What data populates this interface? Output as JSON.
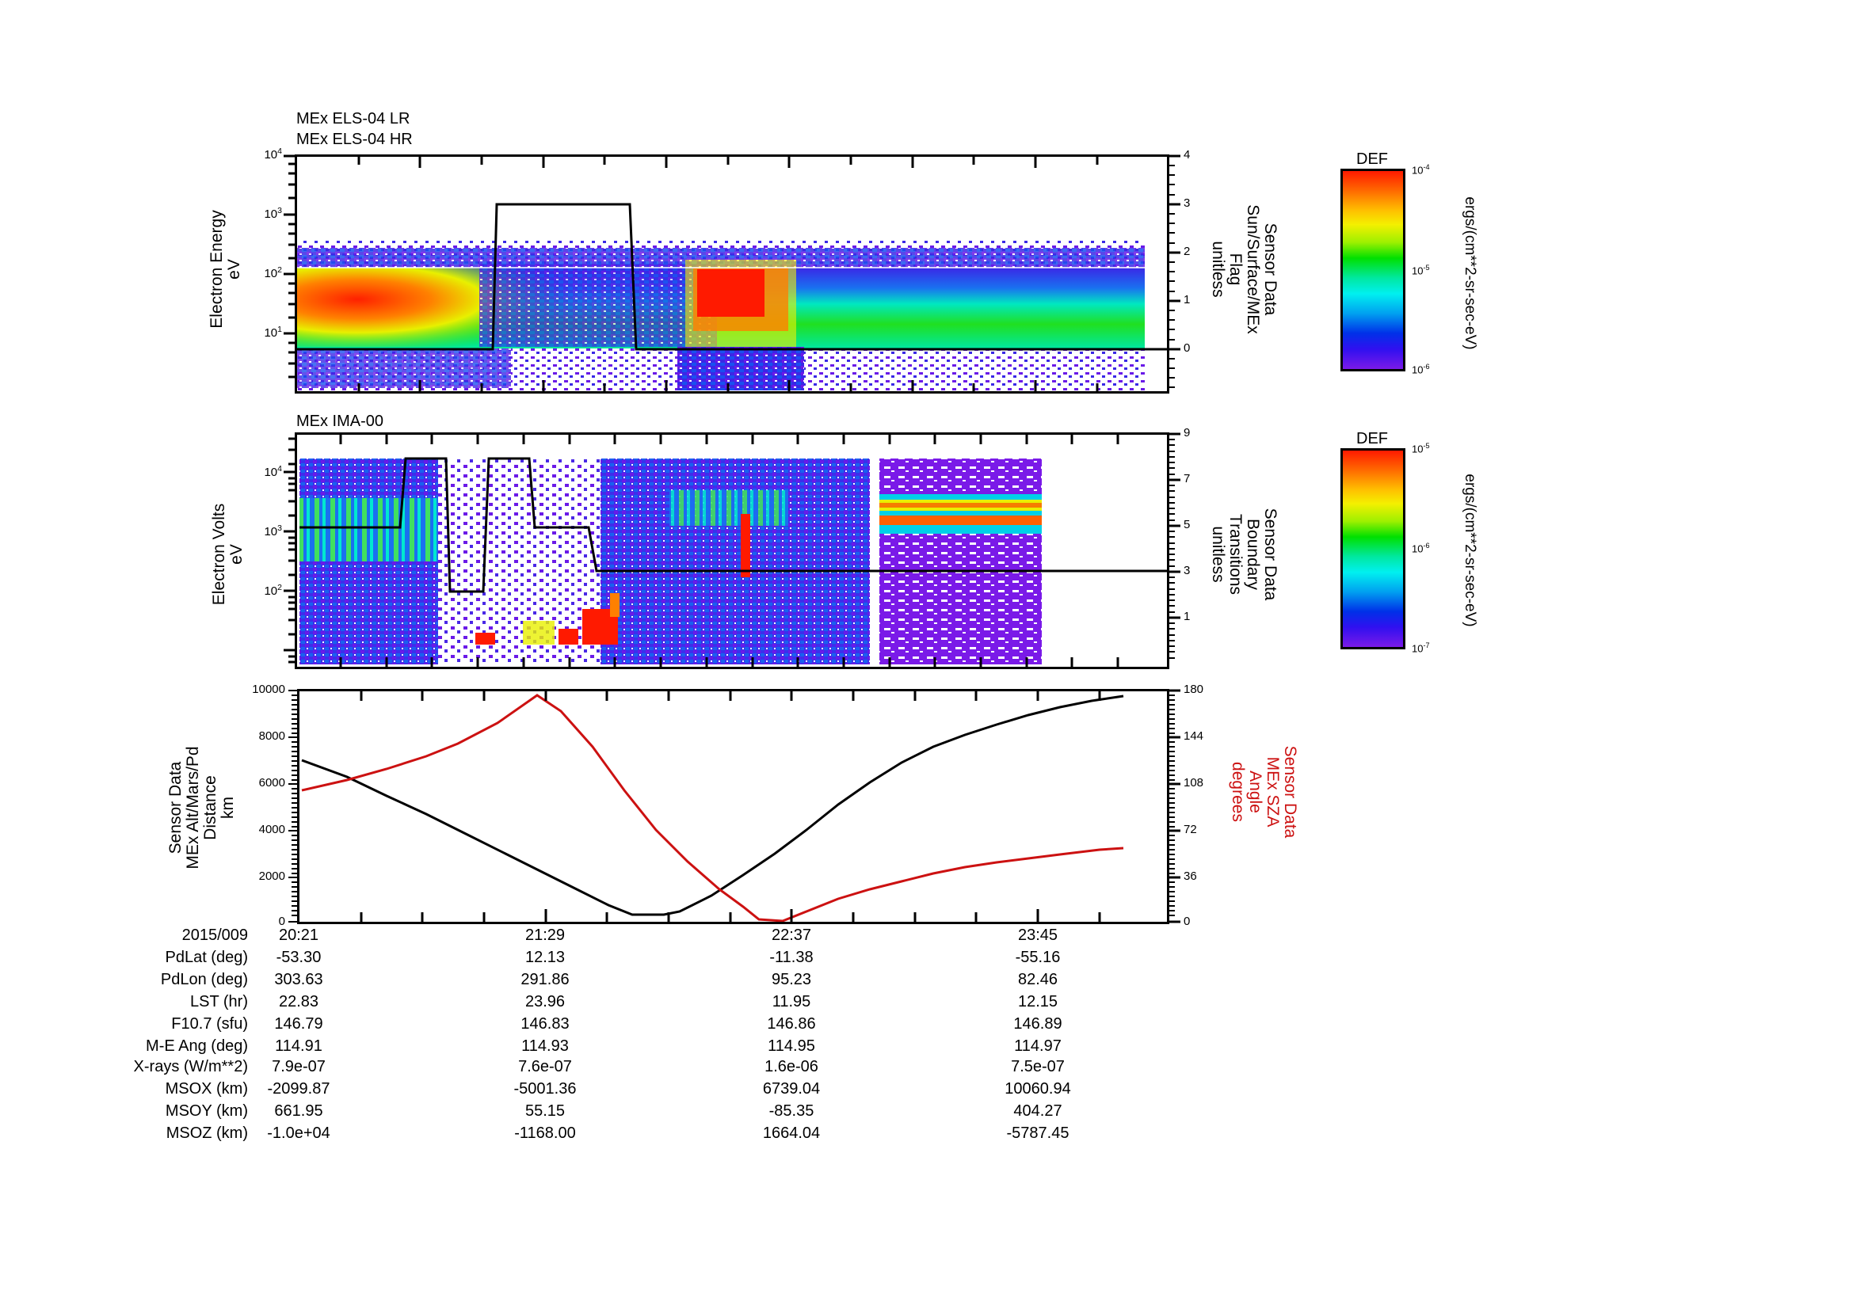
{
  "panels": {
    "els": {
      "title_line1": "MEx ELS-04 LR",
      "title_line2": "MEx ELS-04 HR",
      "ylabel_left": [
        "Electron Energy",
        "eV"
      ],
      "yticks_left": [
        "10^4",
        "10^3",
        "10^2",
        "10^1"
      ],
      "ylabel_right": [
        "Sensor Data",
        "Sun/Surface/MEx",
        "Flag",
        "unitless"
      ],
      "yticks_right": [
        "4",
        "3",
        "2",
        "1",
        "0"
      ],
      "colorbar": {
        "title": "DEF",
        "max": "10^-4",
        "mid": "10^-5",
        "min": "10^-6",
        "unit": "ergs/(cm**2-sr-sec-eV)"
      }
    },
    "ima": {
      "title": "MEx IMA-00",
      "ylabel_left": [
        "Electron Volts",
        "eV"
      ],
      "yticks_left": [
        "10^4",
        "10^3",
        "10^2"
      ],
      "ylabel_right": [
        "Sensor Data",
        "Boundary",
        "Transitions",
        "unitless"
      ],
      "yticks_right": [
        "9",
        "7",
        "5",
        "3",
        "1"
      ],
      "colorbar": {
        "title": "DEF",
        "max": "10^-5",
        "mid": "10^-6",
        "min": "10^-7",
        "unit": "ergs/(cm**2-sr-sec-eV)"
      }
    },
    "orbit": {
      "ylabel_left": [
        "Sensor Data",
        "MEx Alt/Mars/Pd",
        "Distance",
        "km"
      ],
      "yticks_left": [
        "10000",
        "8000",
        "6000",
        "4000",
        "2000",
        "0"
      ],
      "ylabel_right": [
        "Sensor Data",
        "MEx SZA",
        "Angle",
        "degrees"
      ],
      "yticks_right": [
        "180",
        "144",
        "108",
        "72",
        "36",
        "0"
      ],
      "right_color": "#cc1111"
    }
  },
  "annotations": {
    "date": "2015/009",
    "times": [
      "20:21",
      "21:29",
      "22:37",
      "23:45"
    ],
    "rows": [
      {
        "label": "PdLat (deg)",
        "values": [
          "-53.30",
          "12.13",
          "-11.38",
          "-55.16"
        ]
      },
      {
        "label": "PdLon (deg)",
        "values": [
          "303.63",
          "291.86",
          "95.23",
          "82.46"
        ]
      },
      {
        "label": "LST (hr)",
        "values": [
          "22.83",
          "23.96",
          "11.95",
          "12.15"
        ]
      },
      {
        "label": "F10.7 (sfu)",
        "values": [
          "146.79",
          "146.83",
          "146.86",
          "146.89"
        ]
      },
      {
        "label": "M-E Ang (deg)",
        "values": [
          "114.91",
          "114.93",
          "114.95",
          "114.97"
        ]
      },
      {
        "label": "X-rays (W/m**2)",
        "values": [
          "7.9e-07",
          "7.6e-07",
          "1.6e-06",
          "7.5e-07"
        ]
      },
      {
        "label": "MSOX (km)",
        "values": [
          "-2099.87",
          "-5001.36",
          "6739.04",
          "10060.94"
        ]
      },
      {
        "label": "MSOY (km)",
        "values": [
          "661.95",
          "55.15",
          "-85.35",
          "404.27"
        ]
      },
      {
        "label": "MSOZ (km)",
        "values": [
          "-1.0e+04",
          "-1168.00",
          "1664.04",
          "-5787.45"
        ]
      }
    ]
  },
  "chart_data": [
    {
      "type": "heatmap",
      "title": "MEx ELS-04 LR / MEx ELS-04 HR",
      "xlabel": "UT 2015/009",
      "x_ticks": [
        "20:21",
        "21:29",
        "22:37",
        "23:45"
      ],
      "ylabel": "Electron Energy (eV)",
      "yscale": "log",
      "ylim": [
        1,
        10000
      ],
      "colorbar": {
        "label": "DEF ergs/(cm**2-sr-sec-eV)",
        "range": [
          1e-06,
          0.0001
        ],
        "scale": "log"
      },
      "overlay": {
        "name": "Sensor Data Sun/Surface/MEx Flag (unitless)",
        "ylim": [
          -1,
          4
        ],
        "x": [
          "20:21",
          "21:00",
          "21:02",
          "21:29",
          "21:31",
          "21:34",
          "00:30"
        ],
        "values": [
          0,
          0,
          3,
          3,
          3,
          0,
          0
        ]
      }
    },
    {
      "type": "heatmap",
      "title": "MEx IMA-00",
      "xlabel": "UT 2015/009",
      "x_ticks": [
        "20:21",
        "21:29",
        "22:37",
        "23:45"
      ],
      "ylabel": "Electron Volts (eV)",
      "yscale": "log",
      "ylim": [
        10,
        50000
      ],
      "colorbar": {
        "label": "DEF ergs/(cm**2-sr-sec-eV)",
        "range": [
          1e-07,
          1e-05
        ],
        "scale": "log"
      },
      "overlay": {
        "name": "Sensor Data Boundary Transitions (unitless)",
        "ylim": [
          0,
          9
        ],
        "x": [
          "20:21",
          "20:52",
          "20:54",
          "21:08",
          "21:11",
          "21:22",
          "21:25",
          "21:42",
          "21:45",
          "22:02",
          "22:10",
          "00:30"
        ],
        "values": [
          4,
          4,
          7,
          7,
          0,
          0,
          7,
          7,
          4,
          4,
          1,
          1
        ]
      }
    },
    {
      "type": "line",
      "title": "MEx orbit",
      "xlabel": "UT 2015/009",
      "x": [
        "20:21",
        "20:55",
        "21:29",
        "21:45",
        "22:00",
        "22:20",
        "22:37",
        "23:00",
        "23:45",
        "00:25"
      ],
      "series": [
        {
          "name": "MEx Alt/Mars/Pd Distance (km)",
          "axis": "left",
          "color": "#000000",
          "values": [
            7100,
            5000,
            1900,
            400,
            400,
            2000,
            4300,
            6800,
            8700,
            9700
          ]
        },
        {
          "name": "MEx SZA Angle (degrees)",
          "axis": "right",
          "color": "#cc1111",
          "values": [
            102,
            125,
            176,
            130,
            78,
            30,
            1,
            18,
            30,
            43
          ]
        }
      ],
      "ylim_left": [
        0,
        10000
      ],
      "ylim_right": [
        0,
        180
      ],
      "ylabel_left": "Sensor Data MEx Alt/Mars/Pd Distance km",
      "ylabel_right": "Sensor Data MEx SZA Angle degrees"
    }
  ]
}
